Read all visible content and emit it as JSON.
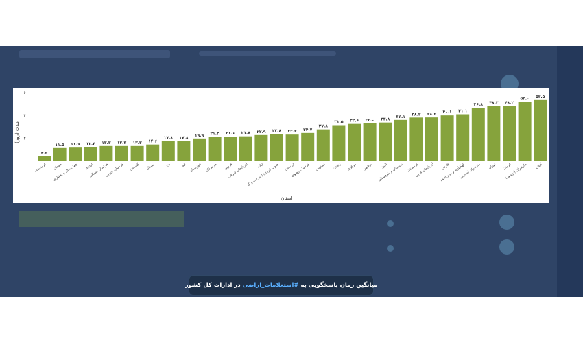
{
  "caption": {
    "before": "میانگین زمان پاسخگویی به",
    "hashtag": "#استعلامات_اراضی",
    "after": "در ادارات کل کشور"
  },
  "chart_data": {
    "type": "bar",
    "xlabel": "استان",
    "ylabel": "مدت (روز)",
    "ylim": [
      0,
      60
    ],
    "yticks": [
      "۰",
      "۲۰",
      "۴۰",
      "۶۰"
    ],
    "ytick_values": [
      0,
      20,
      40,
      60
    ],
    "grid": false,
    "bar_color": "#86a33c",
    "categories": [
      "کرمانشاه",
      "همدان",
      "چهارمحال و بختیاری",
      "اردبیل",
      "خراسان شمالی",
      "خراسان جنوبی",
      "گلستان",
      "سمنان",
      "یزد",
      "قم",
      "خوزستان",
      "هرمزگان",
      "قزوین",
      "آذربایجان شرقی",
      "ایلام",
      "جنوب کرمان (جیرفت و ک",
      "لرستان",
      "خراسان رضوی",
      "اصفهان",
      "زنجان",
      "مرکزی",
      "بوشهر",
      "البرز",
      "سیستان و بلوچستان",
      "کردستان",
      "آذربایجان غربی",
      "فارس",
      "کهگیلویه و بویر احمد",
      "مازندران (ساری)",
      "تهران",
      "کرمان",
      "مازندران (نوشهر)",
      "گیلان"
    ],
    "labels": [
      "۴.۳",
      "۱۱.۵",
      "۱۱.۹",
      "۱۲.۴",
      "۱۳.۳",
      "۱۳.۳",
      "۱۳.۳",
      "۱۴.۶",
      "۱۷.۸",
      "۱۷.۸",
      "۱۹.۹",
      "۲۱.۳",
      "۲۱.۶",
      "۲۱.۸",
      "۲۲.۹",
      "۲۳.۸",
      "۲۳.۳",
      "۲۴.۷",
      "۲۷.۸",
      "۳۱.۵",
      "۳۲.۶",
      "۳۳.۰",
      "۳۳.۸",
      "۳۶.۱",
      "۳۸.۲",
      "۳۸.۳",
      "۴۰.۱",
      "۴۱.۱",
      "۴۶.۸",
      "۴۸.۲",
      "۴۸.۲",
      "۵۲.۰",
      "۵۳.۵"
    ],
    "values": [
      4.3,
      11.5,
      11.9,
      12.4,
      13.3,
      13.3,
      13.3,
      14.6,
      17.8,
      17.8,
      19.9,
      21.3,
      21.6,
      21.8,
      22.9,
      23.8,
      23.3,
      24.7,
      27.8,
      31.5,
      32.6,
      33.0,
      33.8,
      36.1,
      38.2,
      38.3,
      40.1,
      41.1,
      46.8,
      48.2,
      48.2,
      52.0,
      53.5
    ]
  }
}
